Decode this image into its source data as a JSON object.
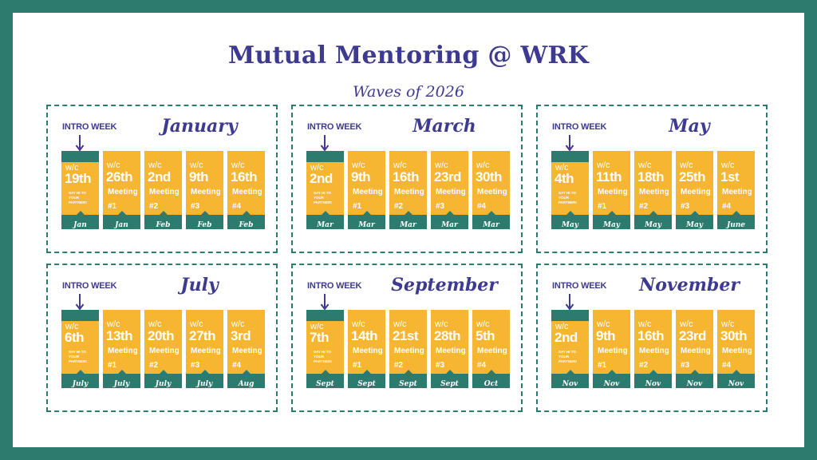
{
  "title": "Mutual Mentoring @ WRK",
  "subtitle": "Waves of 2026",
  "colors": {
    "accent": "#3d3a8f",
    "teal": "#2d7a6e",
    "yellow": "#f7b632"
  },
  "intro_label": "INTRO WEEK",
  "wc_label": "w/c",
  "meeting_label": "Meeting",
  "say_hi": "SAY HI TO YOUR PARTNER!",
  "waves": [
    {
      "name": "January",
      "cards": [
        {
          "date": "19th",
          "month": "Jan",
          "num": ""
        },
        {
          "date": "26th",
          "month": "Jan",
          "num": "#1"
        },
        {
          "date": "2nd",
          "month": "Feb",
          "num": "#2"
        },
        {
          "date": "9th",
          "month": "Feb",
          "num": "#3"
        },
        {
          "date": "16th",
          "month": "Feb",
          "num": "#4"
        }
      ]
    },
    {
      "name": "March",
      "cards": [
        {
          "date": "2nd",
          "month": "Mar",
          "num": ""
        },
        {
          "date": "9th",
          "month": "Mar",
          "num": "#1"
        },
        {
          "date": "16th",
          "month": "Mar",
          "num": "#2"
        },
        {
          "date": "23rd",
          "month": "Mar",
          "num": "#3"
        },
        {
          "date": "30th",
          "month": "Mar",
          "num": "#4"
        }
      ]
    },
    {
      "name": "May",
      "cards": [
        {
          "date": "4th",
          "month": "May",
          "num": ""
        },
        {
          "date": "11th",
          "month": "May",
          "num": "#1"
        },
        {
          "date": "18th",
          "month": "May",
          "num": "#2"
        },
        {
          "date": "25th",
          "month": "May",
          "num": "#3"
        },
        {
          "date": "1st",
          "month": "June",
          "num": "#4"
        }
      ]
    },
    {
      "name": "July",
      "cards": [
        {
          "date": "6th",
          "month": "July",
          "num": ""
        },
        {
          "date": "13th",
          "month": "July",
          "num": "#1"
        },
        {
          "date": "20th",
          "month": "July",
          "num": "#2"
        },
        {
          "date": "27th",
          "month": "July",
          "num": "#3"
        },
        {
          "date": "3rd",
          "month": "Aug",
          "num": "#4"
        }
      ]
    },
    {
      "name": "September",
      "cards": [
        {
          "date": "7th",
          "month": "Sept",
          "num": ""
        },
        {
          "date": "14th",
          "month": "Sept",
          "num": "#1"
        },
        {
          "date": "21st",
          "month": "Sept",
          "num": "#2"
        },
        {
          "date": "28th",
          "month": "Sept",
          "num": "#3"
        },
        {
          "date": "5th",
          "month": "Oct",
          "num": "#4"
        }
      ]
    },
    {
      "name": "November",
      "cards": [
        {
          "date": "2nd",
          "month": "Nov",
          "num": ""
        },
        {
          "date": "9th",
          "month": "Nov",
          "num": "#1"
        },
        {
          "date": "16th",
          "month": "Nov",
          "num": "#2"
        },
        {
          "date": "23rd",
          "month": "Nov",
          "num": "#3"
        },
        {
          "date": "30th",
          "month": "Nov",
          "num": "#4"
        }
      ]
    }
  ]
}
